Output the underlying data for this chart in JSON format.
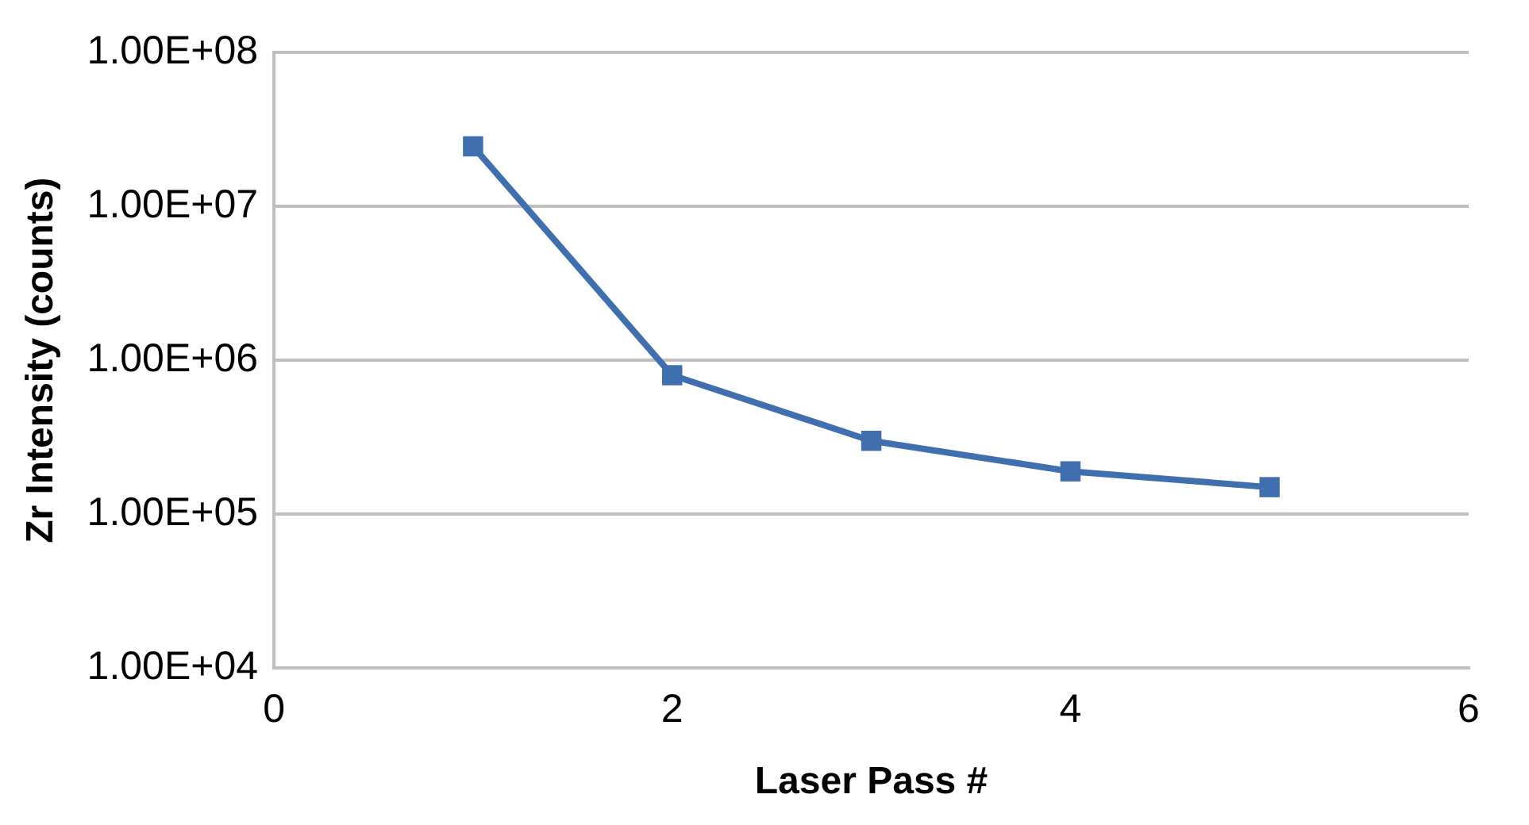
{
  "chart_data": {
    "type": "line",
    "xlabel": "Laser Pass #",
    "ylabel": "Zr Intensity (counts)",
    "x": [
      1,
      2,
      3,
      4,
      5
    ],
    "series": [
      {
        "color": "#3f6fae",
        "values": [
          24500000,
          800000,
          300000,
          190000,
          150000
        ]
      }
    ],
    "xlim": [
      0,
      6
    ],
    "xticks": [
      0,
      2,
      4,
      6
    ],
    "ylim": [
      10000,
      100000000
    ],
    "yticks": [
      {
        "value": 10000,
        "label": "1.00E+04"
      },
      {
        "value": 100000,
        "label": "1.00E+05"
      },
      {
        "value": 1000000,
        "label": "1.00E+06"
      },
      {
        "value": 10000000,
        "label": "1.00E+07"
      },
      {
        "value": 100000000,
        "label": "1.00E+08"
      }
    ],
    "log": "y",
    "grid": "y",
    "legend": false,
    "marker": "square",
    "line_style": "solid"
  }
}
